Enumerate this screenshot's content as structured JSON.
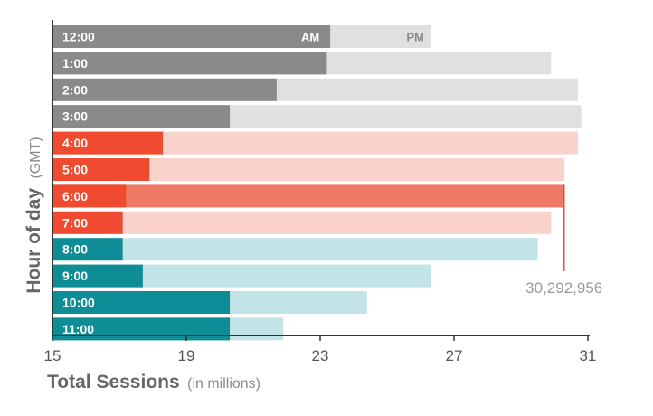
{
  "chart_data": {
    "type": "bar",
    "orientation": "horizontal",
    "title": "",
    "xlabel": "Total Sessions",
    "xlabel_note": "(in millions)",
    "ylabel": "Hour of day",
    "ylabel_note": "(GMT)",
    "xlim": [
      15,
      31
    ],
    "xticks": [
      15,
      19,
      23,
      27,
      31
    ],
    "categories": [
      "12:00",
      "1:00",
      "2:00",
      "3:00",
      "4:00",
      "5:00",
      "6:00",
      "7:00",
      "8:00",
      "9:00",
      "10:00",
      "11:00"
    ],
    "series": [
      {
        "name": "AM",
        "values": [
          23.3,
          23.2,
          21.7,
          20.3,
          18.3,
          17.9,
          17.2,
          17.1,
          17.1,
          17.7,
          20.3,
          20.3
        ]
      },
      {
        "name": "PM",
        "values": [
          26.3,
          29.9,
          30.7,
          30.8,
          30.7,
          30.3,
          30.29,
          29.9,
          29.5,
          26.3,
          24.4,
          21.9
        ]
      }
    ],
    "groups": [
      {
        "rows": [
          0,
          1,
          2,
          3
        ],
        "am_color": "#8a8a8a",
        "pm_color": "#e0e0e0"
      },
      {
        "rows": [
          4,
          5,
          6,
          7
        ],
        "am_color": "#f04a30",
        "pm_color": "#fad2cc"
      },
      {
        "rows": [
          8,
          9,
          10,
          11
        ],
        "am_color": "#0f8d96",
        "pm_color": "#c2e4e6"
      }
    ],
    "highlight": {
      "row": 6,
      "pm_color": "#f07866",
      "label": "30,292,956",
      "line_color": "#f04a30"
    },
    "ampm_labels": {
      "am": "AM",
      "pm": "PM",
      "am_color": "#ffffff",
      "pm_color": "#8a8a8a"
    },
    "axis_color": "#333333",
    "grid": false,
    "legend": "none"
  }
}
